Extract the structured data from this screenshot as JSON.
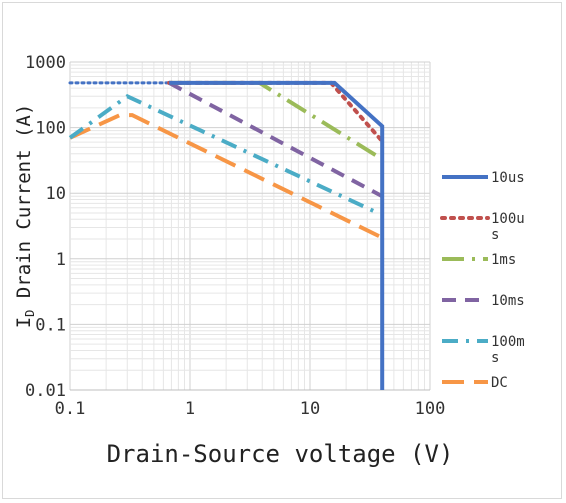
{
  "chart_data": {
    "type": "line",
    "xscale": "log",
    "yscale": "log",
    "xlim": [
      0.1,
      100
    ],
    "ylim": [
      0.01,
      1000
    ],
    "x_ticks": [
      "0.1",
      "1",
      "10",
      "100"
    ],
    "y_ticks": [
      "0.01",
      "0.1",
      "1",
      "10",
      "100",
      "1000"
    ],
    "xlabel": "Drain-Source voltage (V)",
    "ylabel_sub": "D",
    "ylabel_prefix": "I",
    "ylabel_main": " Drain Current (A)",
    "grid": true,
    "legend_position": "right",
    "series": [
      {
        "name": "10us",
        "color": "#4472c4",
        "style": "solid",
        "x": [
          0.67,
          16,
          40,
          40
        ],
        "y": [
          480,
          480,
          105,
          0.01
        ]
      },
      {
        "name": "100us",
        "color": "#c0504d",
        "style": "round-dot",
        "x": [
          0.67,
          15,
          40
        ],
        "y": [
          480,
          480,
          62
        ]
      },
      {
        "name": "1ms",
        "color": "#9bbb59",
        "style": "long-dash-dot",
        "x": [
          0.67,
          3.8,
          40
        ],
        "y": [
          480,
          480,
          33
        ]
      },
      {
        "name": "10ms",
        "color": "#8064a2",
        "style": "dash",
        "x": [
          0.67,
          40
        ],
        "y": [
          480,
          9
        ]
      },
      {
        "name": "100ms",
        "color": "#4bacc6",
        "style": "dash-dot",
        "x": [
          0.1,
          0.3,
          35
        ],
        "y": [
          70,
          300,
          5.2
        ]
      },
      {
        "name": "DC",
        "color": "#f79646",
        "style": "long-dash",
        "x": [
          0.1,
          0.26,
          0.33,
          40
        ],
        "y": [
          70,
          155,
          155,
          2.1
        ]
      },
      {
        "name": "",
        "color": "#4472c4",
        "style": "dotted",
        "x": [
          0.1,
          0.67
        ],
        "y": [
          480,
          480
        ]
      }
    ]
  }
}
